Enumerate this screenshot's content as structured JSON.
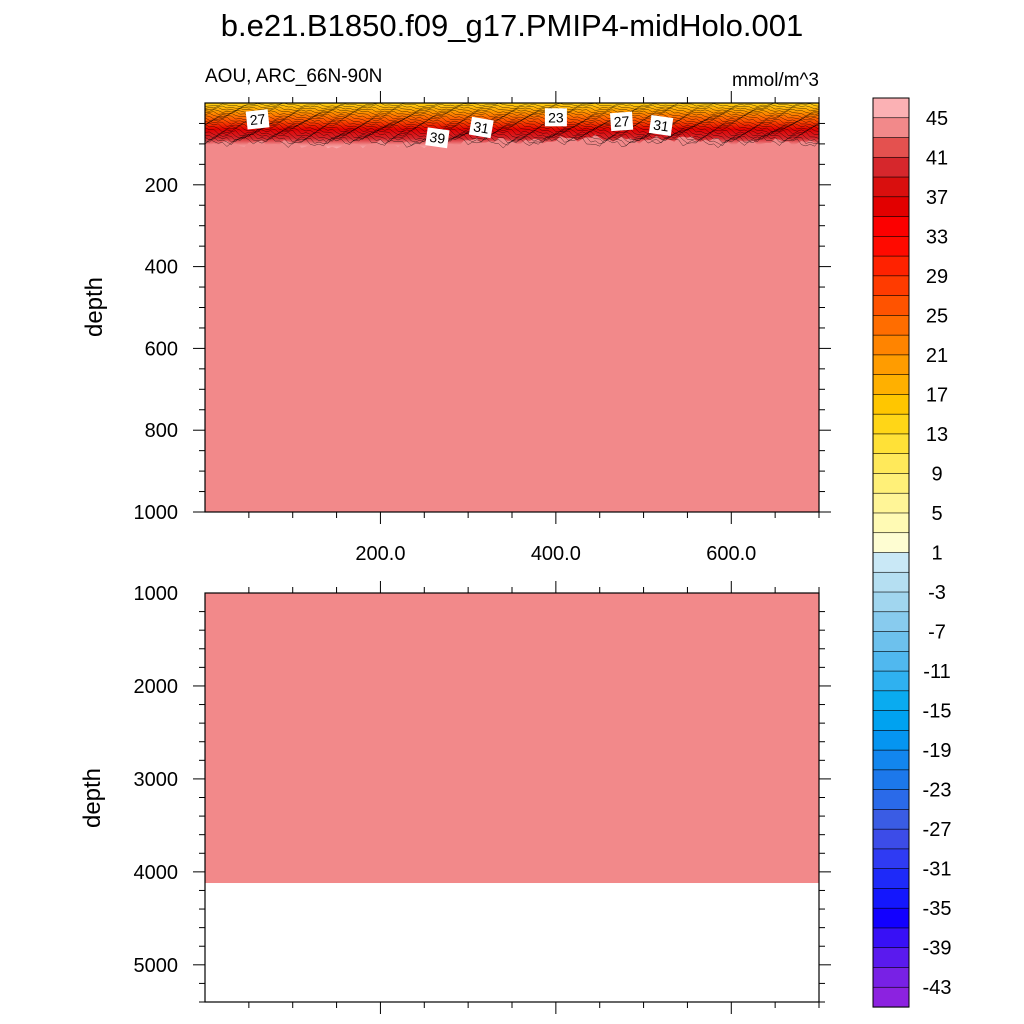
{
  "title": "b.e21.B1850.f09_g17.PMIP4-midHolo.001",
  "chart_data": [
    {
      "type": "heatmap",
      "panel": "upper",
      "left_string": "AOU, ARC_66N-90N",
      "right_string": "mmol/m^3",
      "ylabel": "depth",
      "xlabel": "",
      "xlim": [
        0,
        700
      ],
      "ylim": [
        0,
        1000
      ],
      "y_reversed": true,
      "x_ticks": [
        200,
        400,
        600
      ],
      "x_tick_labels": [
        "200.0",
        "400.0",
        "600.0"
      ],
      "y_ticks": [
        200,
        400,
        600,
        800,
        1000
      ],
      "y_tick_labels": [
        "200",
        "400",
        "600",
        "800",
        "1000"
      ],
      "surface_layer_depth": [
        0,
        100
      ],
      "surface_layer_range": [
        5,
        45
      ],
      "deep_value": 45,
      "contour_labels": [
        {
          "label": "27",
          "x": 60,
          "depth": 40
        },
        {
          "label": "39",
          "x": 265,
          "depth": 85
        },
        {
          "label": "31",
          "x": 315,
          "depth": 60
        },
        {
          "label": "23",
          "x": 400,
          "depth": 35
        },
        {
          "label": "27",
          "x": 475,
          "depth": 45
        },
        {
          "label": "31",
          "x": 520,
          "depth": 55
        }
      ]
    },
    {
      "type": "heatmap",
      "panel": "lower",
      "ylabel": "depth",
      "xlim": [
        0,
        700
      ],
      "ylim": [
        1000,
        5400
      ],
      "y_reversed": true,
      "y_ticks": [
        1000,
        2000,
        3000,
        4000,
        5000
      ],
      "y_tick_labels": [
        "1000",
        "2000",
        "3000",
        "4000",
        "5000"
      ],
      "deep_value": 45,
      "sea_floor_depth": 4120
    }
  ],
  "colorbar": {
    "labels": [
      "45",
      "41",
      "37",
      "33",
      "29",
      "25",
      "21",
      "17",
      "13",
      "9",
      "5",
      "1",
      "-3",
      "-7",
      "-11",
      "-15",
      "-19",
      "-23",
      "-27",
      "-31",
      "-35",
      "-39",
      "-43"
    ],
    "colors": [
      "#fbb1b4",
      "#f2898a",
      "#e4514f",
      "#d6272c",
      "#d90f0e",
      "#e20000",
      "#fc0000",
      "#ff0a00",
      "#ff2200",
      "#ff3b00",
      "#ff5300",
      "#ff6d00",
      "#ff8400",
      "#ff9c00",
      "#ffb000",
      "#ffc600",
      "#ffd617",
      "#ffe137",
      "#ffe95a",
      "#fff078",
      "#fff597",
      "#fffab4",
      "#fefdd2",
      "#c9e8f6",
      "#b5dff2",
      "#a1d6ef",
      "#88cbee",
      "#6dc1ed",
      "#50b8ef",
      "#2fb1f0",
      "#0aabf0",
      "#00a2f0",
      "#0595f1",
      "#1286ee",
      "#1c78eb",
      "#2a6ae9",
      "#3a5ce4",
      "#3c4ce8",
      "#2f3bf3",
      "#1e2af9",
      "#1417fd",
      "#1200ff",
      "#3810f6",
      "#5a1aee",
      "#7821e5",
      "#8c22e0"
    ]
  }
}
